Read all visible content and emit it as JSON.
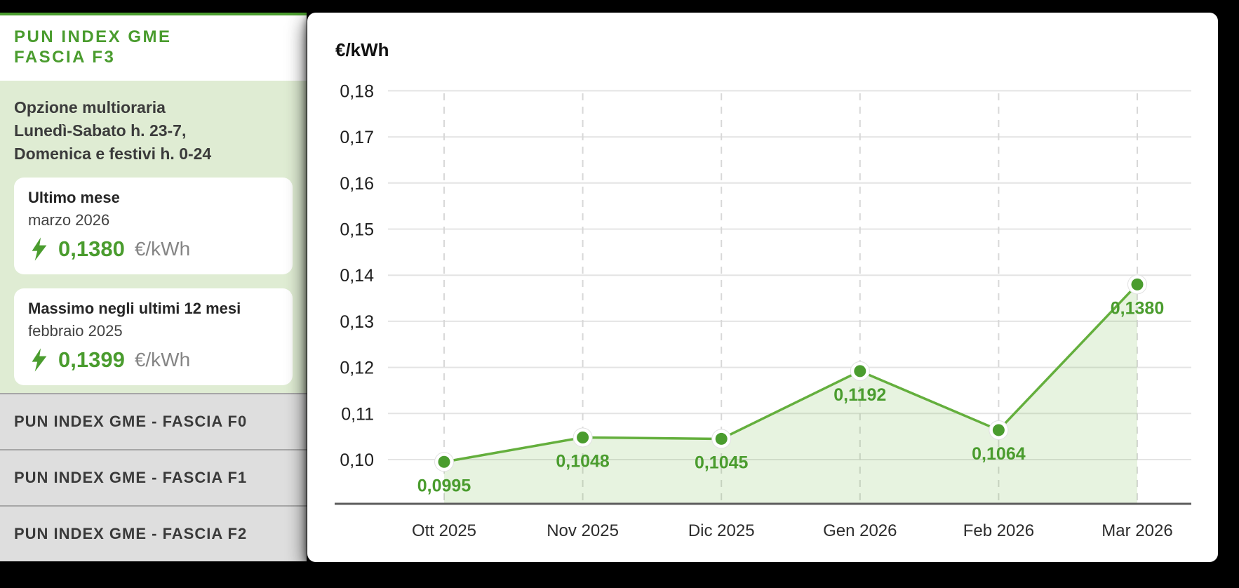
{
  "colors": {
    "accent_green": "#4a9c2e",
    "line_green": "#64af3d",
    "area_fill": "rgba(105,178,63,0.16)",
    "panel_green": "#dfecd3",
    "row_gray": "#dedede",
    "background": "#000000"
  },
  "sidebar": {
    "title_line1": "PUN INDEX GME",
    "title_line2": "FASCIA F3",
    "description": [
      "Opzione multioraria",
      "Lunedì-Sabato h. 23-7,",
      "Domenica e festivi h. 0-24"
    ],
    "cards": [
      {
        "title": "Ultimo mese",
        "subtitle": "marzo 2026",
        "value": "0,1380",
        "unit": "€/kWh",
        "icon": "lightning-icon"
      },
      {
        "title": "Massimo negli ultimi 12 mesi",
        "subtitle": "febbraio 2025",
        "value": "0,1399",
        "unit": "€/kWh",
        "icon": "lightning-icon"
      }
    ],
    "links": [
      "PUN INDEX GME - FASCIA F0",
      "PUN INDEX GME - FASCIA F1",
      "PUN INDEX GME - FASCIA F2"
    ]
  },
  "chart_data": {
    "type": "area",
    "title": "€/kWh",
    "x": [
      "Ott 2025",
      "Nov 2025",
      "Dic 2025",
      "Gen 2026",
      "Feb 2026",
      "Mar 2026"
    ],
    "values": [
      0.0995,
      0.1048,
      0.1045,
      0.1192,
      0.1064,
      0.138
    ],
    "point_labels": [
      "0,0995",
      "0,1048",
      "0,1045",
      "0,1192",
      "0,1064",
      "0,1380"
    ],
    "y_ticks": [
      {
        "label": "0,18",
        "value": 0.18
      },
      {
        "label": "0,17",
        "value": 0.17
      },
      {
        "label": "0,16",
        "value": 0.16
      },
      {
        "label": "0,15",
        "value": 0.15
      },
      {
        "label": "0,14",
        "value": 0.14
      },
      {
        "label": "0,13",
        "value": 0.13
      },
      {
        "label": "0,12",
        "value": 0.12
      },
      {
        "label": "0,11",
        "value": 0.11
      },
      {
        "label": "0,10",
        "value": 0.1
      }
    ],
    "ylim": [
      0.0905,
      0.185
    ],
    "xlabel": "",
    "ylabel": "€/kWh",
    "grid": true,
    "legend_position": "none",
    "line_color": "#64af3d",
    "point_color": "#4a9c2e",
    "fill_color": "rgba(105,178,63,0.16)"
  }
}
